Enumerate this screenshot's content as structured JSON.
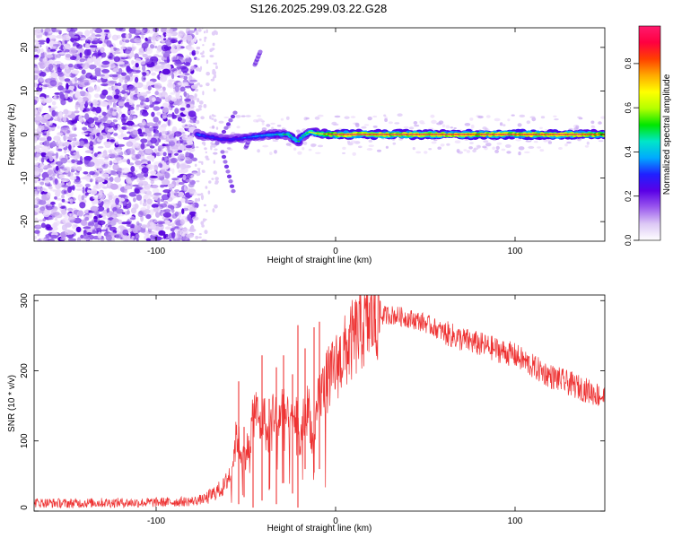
{
  "figure": {
    "title": "S126.2025.299.03.22.G28"
  },
  "chart_data": [
    {
      "type": "heatmap",
      "title": "S126.2025.299.03.22.G28",
      "xlabel": "Height of straight line (km)",
      "ylabel": "Frequency (Hz)",
      "xlim": [
        -168,
        150
      ],
      "ylim": [
        -24.5,
        24.5
      ],
      "xticks": [
        -100,
        0,
        100
      ],
      "xtick_labels": [
        "-100",
        "0",
        "100"
      ],
      "yticks": [
        -20,
        -10,
        0,
        10,
        20
      ],
      "ytick_labels": [
        "-20",
        "-10",
        "0",
        "10",
        "20"
      ],
      "description_of_signal": "noisy purple speckle for x < -78 km; narrow band near 0 Hz from about -78 km to 150 km, peaking near 1.0 at 0 to 150 km",
      "ridge": {
        "x": [
          -77,
          -70,
          -62,
          -55,
          -48,
          -40,
          -33,
          -26,
          -21,
          -19,
          -15,
          -10,
          0,
          10,
          20,
          30,
          40,
          50,
          60,
          70,
          80,
          90,
          100,
          110,
          120,
          130,
          140,
          148
        ],
        "frequency": [
          0.0,
          -0.6,
          -1.2,
          -1.0,
          -0.6,
          -0.2,
          0.0,
          0.0,
          -1.8,
          -0.5,
          0.6,
          0.2,
          0.0,
          0.0,
          0.0,
          0.0,
          0.0,
          0.0,
          0.0,
          0.0,
          0.0,
          0.0,
          0.0,
          0.0,
          0.0,
          0.0,
          0.0,
          0.0
        ],
        "amplitude": [
          0.35,
          0.3,
          0.3,
          0.3,
          0.35,
          0.4,
          0.45,
          0.5,
          0.5,
          0.55,
          0.6,
          0.7,
          0.95,
          1.0,
          1.0,
          0.95,
          1.0,
          1.0,
          0.95,
          1.0,
          0.9,
          1.0,
          0.95,
          1.0,
          0.95,
          1.0,
          0.95,
          0.9
        ]
      },
      "colorbar": {
        "label": "Normalized spectral amplitude",
        "range": [
          0.0,
          0.97
        ],
        "ticks": [
          0.0,
          0.2,
          0.4,
          0.6,
          0.8
        ],
        "tick_labels": [
          "0.0",
          "0.2",
          "0.4",
          "0.6",
          "0.8"
        ],
        "colormap": [
          "#ffffff",
          "#dcc8f5",
          "#9b59ee",
          "#5a00e6",
          "#2020ff",
          "#00aaff",
          "#00e6c8",
          "#00e600",
          "#b4ff00",
          "#ffff00",
          "#ffaa00",
          "#ff4000",
          "#ff0040",
          "#ff1a6e"
        ]
      }
    },
    {
      "type": "line",
      "xlabel": "Height of straight line (km)",
      "ylabel": "SNR (10 * v/v)",
      "xlim": [
        -168,
        150
      ],
      "ylim": [
        0,
        308
      ],
      "xticks": [
        -100,
        0,
        100
      ],
      "xtick_labels": [
        "-100",
        "0",
        "100"
      ],
      "yticks": [
        0,
        100,
        200,
        300
      ],
      "ytick_labels": [
        "0",
        "100",
        "200",
        "300"
      ],
      "series": [
        {
          "name": "SNR",
          "color": "#ee3333",
          "x": [
            -168,
            -150,
            -130,
            -110,
            -90,
            -80,
            -72,
            -68,
            -62,
            -58,
            -55,
            -52,
            -48,
            -45,
            -42,
            -40,
            -38,
            -35,
            -32,
            -30,
            -28,
            -25,
            -22,
            -20,
            -18,
            -15,
            -12,
            -10,
            -8,
            -5,
            -2,
            0,
            5,
            10,
            15,
            20,
            25,
            30,
            35,
            40,
            45,
            50,
            60,
            70,
            80,
            90,
            100,
            110,
            120,
            130,
            140,
            150
          ],
          "envelope": [
            12,
            11,
            12,
            12,
            13,
            14,
            18,
            25,
            35,
            60,
            110,
            75,
            95,
            150,
            120,
            140,
            100,
            145,
            125,
            150,
            135,
            120,
            140,
            90,
            130,
            150,
            80,
            150,
            170,
            185,
            195,
            205,
            225,
            245,
            262,
            272,
            278,
            280,
            278,
            275,
            272,
            268,
            255,
            245,
            238,
            230,
            222,
            206,
            192,
            182,
            172,
            162
          ],
          "spikes": [
            {
              "x": -54,
              "low": 10,
              "high": 185
            },
            {
              "x": -51,
              "low": 20,
              "high": 120
            },
            {
              "x": -46,
              "low": 5,
              "high": 150
            },
            {
              "x": -41,
              "low": 15,
              "high": 222
            },
            {
              "x": -37,
              "low": 30,
              "high": 160
            },
            {
              "x": -33,
              "low": 10,
              "high": 205
            },
            {
              "x": -29,
              "low": 40,
              "high": 222
            },
            {
              "x": -24,
              "low": 25,
              "high": 195
            },
            {
              "x": -21,
              "low": 5,
              "high": 265
            },
            {
              "x": -17,
              "low": 60,
              "high": 232
            },
            {
              "x": -12,
              "low": 55,
              "high": 262
            },
            {
              "x": -9,
              "low": 60,
              "high": 270
            },
            {
              "x": 22,
              "low": 240,
              "high": 308
            }
          ]
        }
      ]
    }
  ]
}
